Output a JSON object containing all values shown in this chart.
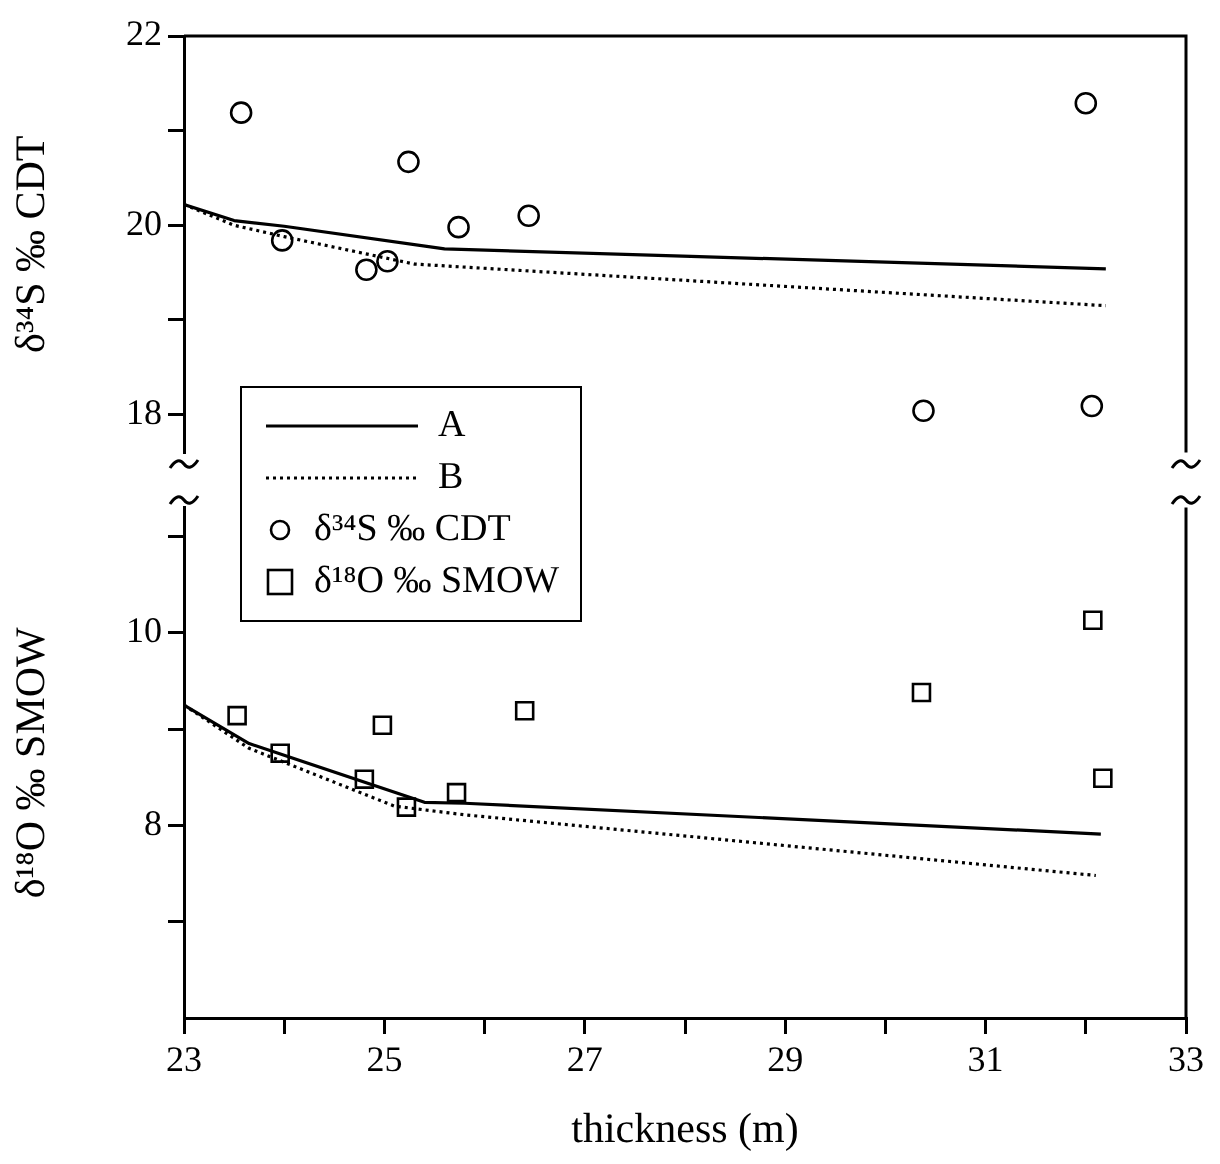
{
  "chart_data": [
    {
      "type": "scatter",
      "xlim": [
        23,
        33
      ],
      "ylim": [
        17.6,
        22
      ],
      "yticks": [
        18,
        {
          "value": 19,
          "label": null
        },
        20,
        {
          "value": 21,
          "label": null
        },
        22
      ],
      "ylabel": "δ³⁴S ‰ CDT",
      "tick_labels": "y",
      "legend": "bottom left",
      "series": [
        {
          "name": "A",
          "type": "line",
          "line_style": "solid",
          "marker": "none",
          "color": "#000000",
          "x": [
            23.0,
            23.5,
            24.0,
            25.6,
            32.2
          ],
          "values": [
            20.22,
            20.05,
            19.99,
            19.75,
            19.54
          ]
        },
        {
          "name": "B",
          "type": "line",
          "line_style": "dotted",
          "marker": "none",
          "color": "#000000",
          "x": [
            23.0,
            23.5,
            24.0,
            25.3,
            32.2
          ],
          "values": [
            20.22,
            20.0,
            19.88,
            19.59,
            19.15
          ]
        },
        {
          "name": "δ³⁴S ‰ CDT",
          "type": "scatter",
          "marker": "circle",
          "color": "#000000",
          "x": [
            23.57,
            23.98,
            24.82,
            25.03,
            25.24,
            25.74,
            26.44,
            30.38,
            32.0,
            32.06
          ],
          "values": [
            21.19,
            19.84,
            19.53,
            19.62,
            20.67,
            19.98,
            20.1,
            18.04,
            21.29,
            18.09
          ]
        }
      ]
    },
    {
      "type": "scatter",
      "xlim": [
        23,
        33
      ],
      "xticks": [
        23,
        {
          "value": 24,
          "label": null
        },
        25,
        {
          "value": 26,
          "label": null
        },
        27,
        {
          "value": 28,
          "label": null
        },
        29,
        {
          "value": 30,
          "label": null
        },
        31,
        {
          "value": 32,
          "label": null
        },
        33
      ],
      "ylim": [
        6,
        11.3
      ],
      "yticks": [
        {
          "value": 7,
          "label": null
        },
        8,
        {
          "value": 9,
          "label": null
        },
        10,
        {
          "value": 11,
          "label": null
        }
      ],
      "xlabel": "thickness (m)",
      "ylabel": "δ¹⁸O ‰ SMOW",
      "legend": "top left",
      "series": [
        {
          "name": "A",
          "type": "line",
          "line_style": "solid",
          "marker": "none",
          "color": "#000000",
          "x": [
            23.0,
            23.65,
            25.4,
            25.8,
            32.15
          ],
          "values": [
            9.25,
            8.85,
            8.24,
            8.23,
            7.91
          ]
        },
        {
          "name": "B",
          "type": "line",
          "line_style": "dotted",
          "marker": "none",
          "color": "#000000",
          "x": [
            23.0,
            23.65,
            25.1,
            25.8,
            32.1
          ],
          "values": [
            9.25,
            8.8,
            8.2,
            8.11,
            7.48
          ]
        },
        {
          "name": "δ¹⁸O ‰ SMOW",
          "type": "scatter",
          "marker": "square",
          "color": "#000000",
          "x": [
            23.53,
            23.96,
            24.8,
            24.98,
            25.22,
            25.72,
            26.4,
            30.36,
            32.07,
            32.17
          ],
          "values": [
            9.14,
            8.75,
            8.48,
            9.04,
            8.19,
            8.34,
            9.19,
            9.38,
            10.13,
            8.49
          ]
        }
      ]
    }
  ]
}
